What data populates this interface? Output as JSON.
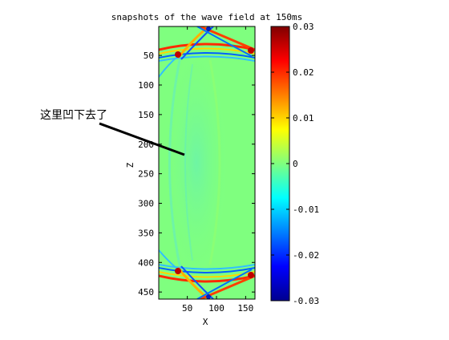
{
  "chart_data": {
    "type": "heatmap",
    "title": "snapshots of the wave field at 150ms",
    "xlabel": "X",
    "ylabel": "Z",
    "xlim": [
      1,
      166
    ],
    "ylim": [
      1,
      462
    ],
    "x_ticks": [
      50,
      100,
      150
    ],
    "y_ticks": [
      50,
      100,
      150,
      200,
      250,
      300,
      350,
      400,
      450
    ],
    "colorbar": {
      "colormap": "jet",
      "range": [
        -0.03,
        0.03
      ],
      "ticks": [
        0.03,
        0.02,
        0.01,
        0,
        -0.01,
        -0.02,
        -0.03
      ],
      "tick_labels": [
        "0.03",
        "0.02",
        "0.01",
        "0",
        "-0.01",
        "-0.02",
        "-0.03"
      ]
    },
    "background_value": 0.0,
    "annotation": {
      "text": "这里凹下去了",
      "points_to": {
        "x": 35,
        "z": 220
      }
    }
  }
}
